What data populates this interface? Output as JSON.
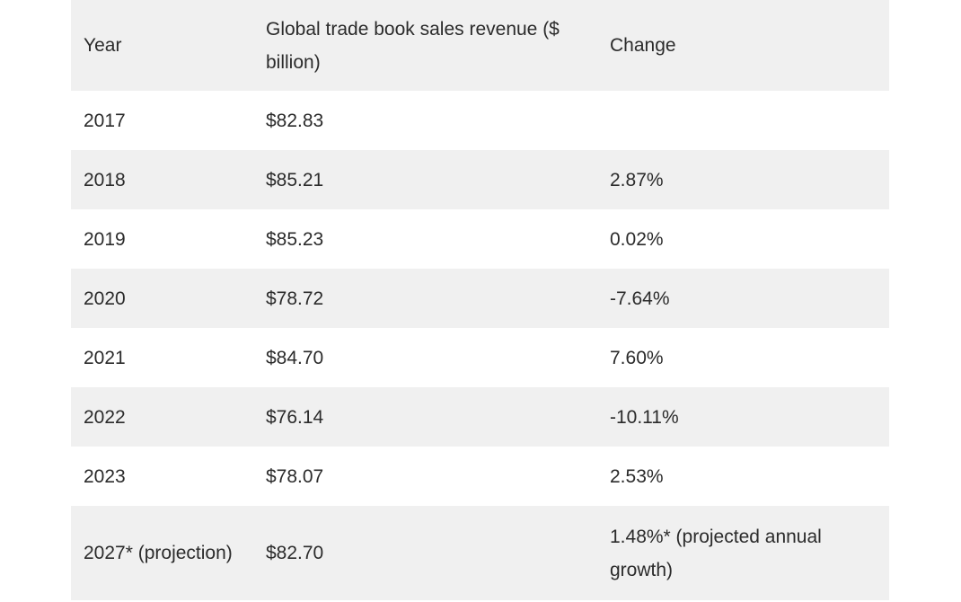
{
  "table": {
    "headers": {
      "year": "Year",
      "revenue": "Global trade book sales revenue ($ billion)",
      "change": "Change"
    },
    "rows": [
      {
        "year": "2017",
        "revenue": "$82.83",
        "change": ""
      },
      {
        "year": "2018",
        "revenue": "$85.21",
        "change": "2.87%"
      },
      {
        "year": "2019",
        "revenue": "$85.23",
        "change": "0.02%"
      },
      {
        "year": "2020",
        "revenue": "$78.72",
        "change": "-7.64%"
      },
      {
        "year": "2021",
        "revenue": "$84.70",
        "change": "7.60%"
      },
      {
        "year": "2022",
        "revenue": "$76.14",
        "change": "-10.11%"
      },
      {
        "year": "2023",
        "revenue": "$78.07",
        "change": "2.53%"
      },
      {
        "year": "2027* (projection)",
        "revenue": "$82.70",
        "change": "1.48%* (projected annual growth)"
      }
    ]
  },
  "colors": {
    "stripe": "#f0f0f0",
    "text": "#2b2b2b",
    "background": "#ffffff"
  }
}
